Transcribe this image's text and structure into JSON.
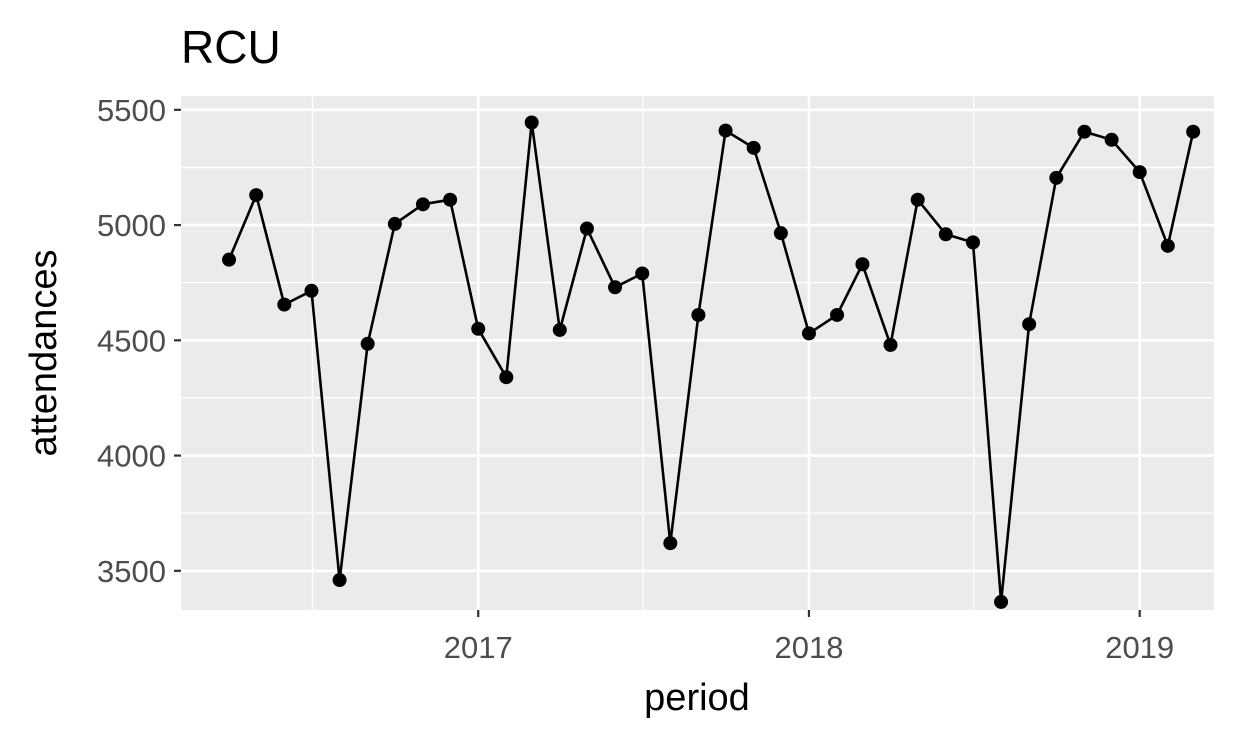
{
  "chart_data": {
    "type": "line",
    "title": "RCU",
    "xlabel": "period",
    "ylabel": "attendances",
    "x_ticks": [
      "2017",
      "2018",
      "2019"
    ],
    "y_ticks": [
      "3500",
      "4000",
      "4500",
      "5000",
      "5500"
    ],
    "x_range": [
      "2016-02-08",
      "2019-03-24"
    ],
    "ylim": [
      3330,
      5560
    ],
    "grid": true,
    "series": [
      {
        "values": [
          {
            "x": "2016-04-01",
            "y": 4850
          },
          {
            "x": "2016-05-01",
            "y": 5130
          },
          {
            "x": "2016-06-01",
            "y": 4655
          },
          {
            "x": "2016-07-01",
            "y": 4715
          },
          {
            "x": "2016-08-01",
            "y": 3460
          },
          {
            "x": "2016-09-01",
            "y": 4485
          },
          {
            "x": "2016-10-01",
            "y": 5005
          },
          {
            "x": "2016-11-01",
            "y": 5090
          },
          {
            "x": "2016-12-01",
            "y": 5110
          },
          {
            "x": "2017-01-01",
            "y": 4550
          },
          {
            "x": "2017-02-01",
            "y": 4340
          },
          {
            "x": "2017-03-01",
            "y": 5445
          },
          {
            "x": "2017-04-01",
            "y": 4545
          },
          {
            "x": "2017-05-01",
            "y": 4985
          },
          {
            "x": "2017-06-01",
            "y": 4730
          },
          {
            "x": "2017-07-01",
            "y": 4790
          },
          {
            "x": "2017-08-01",
            "y": 3620
          },
          {
            "x": "2017-09-01",
            "y": 4610
          },
          {
            "x": "2017-10-01",
            "y": 5410
          },
          {
            "x": "2017-11-01",
            "y": 5335
          },
          {
            "x": "2017-12-01",
            "y": 4965
          },
          {
            "x": "2018-01-01",
            "y": 4530
          },
          {
            "x": "2018-02-01",
            "y": 4610
          },
          {
            "x": "2018-03-01",
            "y": 4830
          },
          {
            "x": "2018-04-01",
            "y": 4480
          },
          {
            "x": "2018-05-01",
            "y": 5110
          },
          {
            "x": "2018-06-01",
            "y": 4960
          },
          {
            "x": "2018-07-01",
            "y": 4925
          },
          {
            "x": "2018-08-01",
            "y": 3365
          },
          {
            "x": "2018-09-01",
            "y": 4570
          },
          {
            "x": "2018-10-01",
            "y": 5205
          },
          {
            "x": "2018-11-01",
            "y": 5405
          },
          {
            "x": "2018-12-01",
            "y": 5370
          },
          {
            "x": "2019-01-01",
            "y": 5230
          },
          {
            "x": "2019-02-01",
            "y": 4910
          },
          {
            "x": "2019-03-01",
            "y": 5405
          }
        ]
      }
    ],
    "colors": {
      "panel": "#ebebeb",
      "grid": "#ffffff",
      "line": "#000000",
      "point": "#000000",
      "tick": "#333333"
    }
  }
}
